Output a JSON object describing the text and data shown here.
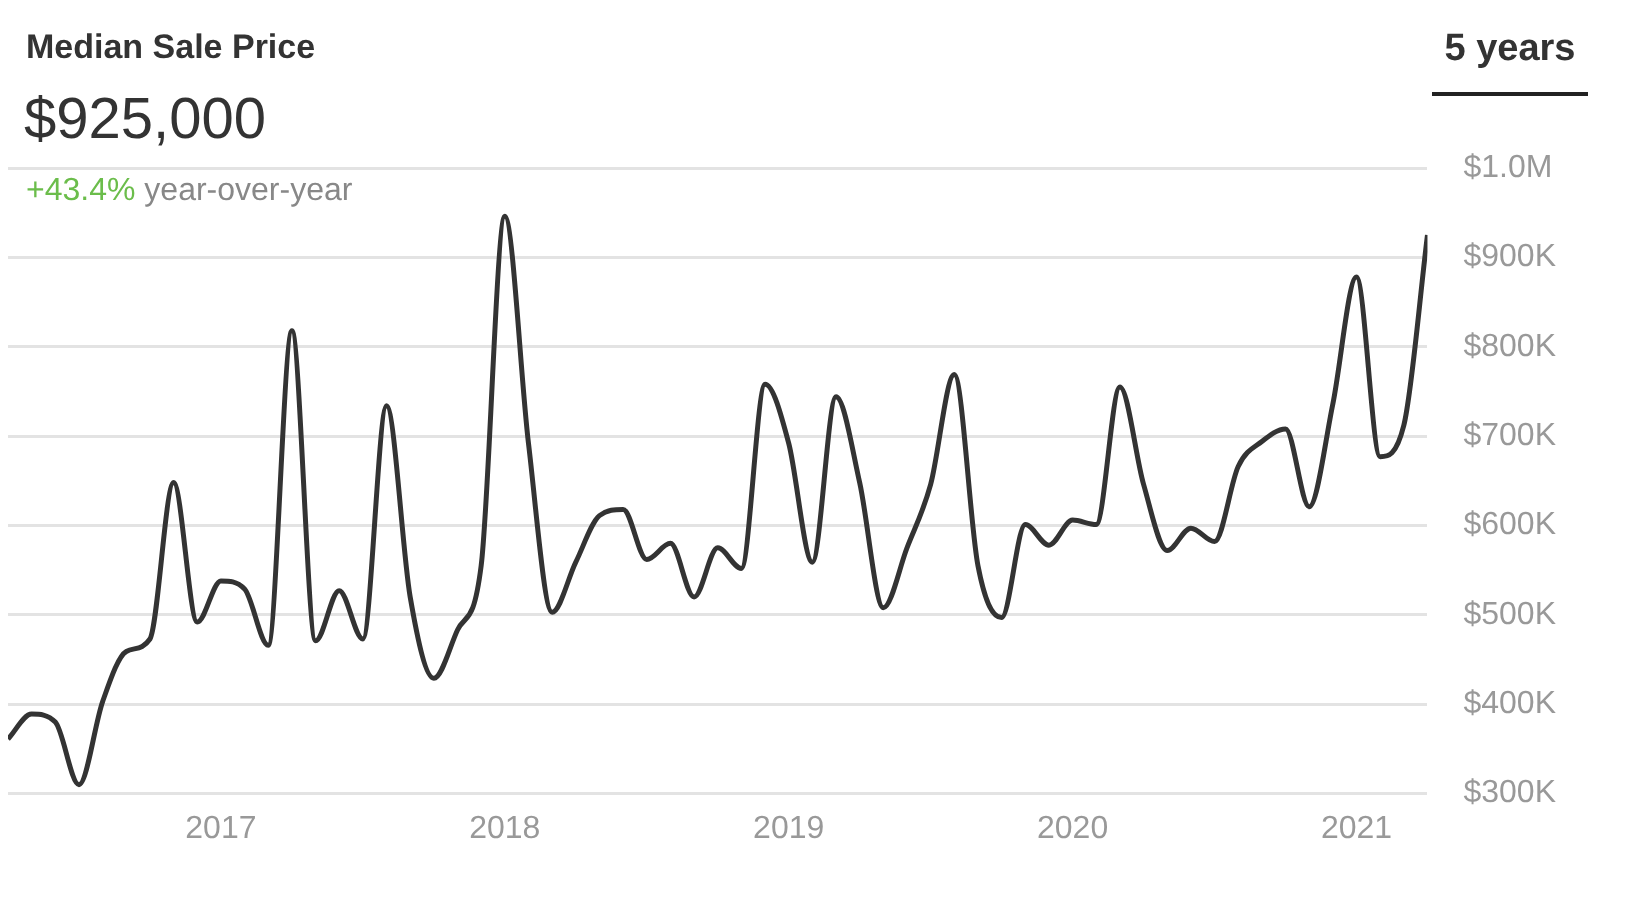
{
  "chart_data": {
    "type": "line",
    "title": "Median Sale Price",
    "subtitle": "$925,000",
    "annotations": [
      "+43.4%",
      "year-over-year",
      "5 years"
    ],
    "x": [
      "2016-04",
      "2016-05",
      "2016-06",
      "2016-07",
      "2016-08",
      "2016-09",
      "2016-10",
      "2016-11",
      "2016-12",
      "2017-01",
      "2017-02",
      "2017-03",
      "2017-04",
      "2017-05",
      "2017-06",
      "2017-07",
      "2017-08",
      "2017-09",
      "2017-10",
      "2017-11",
      "2017-12",
      "2018-01",
      "2018-02",
      "2018-03",
      "2018-04",
      "2018-05",
      "2018-06",
      "2018-07",
      "2018-08",
      "2018-09",
      "2018-10",
      "2018-11",
      "2018-12",
      "2019-01",
      "2019-02",
      "2019-03",
      "2019-04",
      "2019-05",
      "2019-06",
      "2019-07",
      "2019-08",
      "2019-09",
      "2019-10",
      "2019-11",
      "2019-12",
      "2020-01",
      "2020-02",
      "2020-03",
      "2020-04",
      "2020-05",
      "2020-06",
      "2020-07",
      "2020-08",
      "2020-09",
      "2020-10",
      "2020-11",
      "2020-12",
      "2021-01",
      "2021-02",
      "2021-03",
      "2021-04"
    ],
    "series": [
      {
        "color": "#333333",
        "values": [
          361000,
          389000,
          380000,
          310000,
          403000,
          459000,
          473000,
          648000,
          492000,
          538000,
          529000,
          466000,
          818000,
          471000,
          527000,
          473000,
          734000,
          520000,
          429000,
          483000,
          555000,
          946000,
          692000,
          503000,
          559000,
          611000,
          618000,
          562000,
          580000,
          520000,
          575000,
          552000,
          758000,
          692000,
          559000,
          744000,
          648000,
          508000,
          575000,
          646000,
          769000,
          555000,
          497000,
          601000,
          578000,
          606000,
          601000,
          755000,
          646000,
          572000,
          597000,
          582000,
          666000,
          694000,
          708000,
          621000,
          736000,
          878000,
          677000,
          712000,
          925000
        ]
      }
    ],
    "xlim": [
      "2016-04",
      "2021-04"
    ],
    "xticks": [
      "2017",
      "2018",
      "2019",
      "2020",
      "2021"
    ],
    "ylim": [
      300000,
      1000000
    ],
    "yticks": [
      {
        "value": 300000,
        "label": "$300K"
      },
      {
        "value": 400000,
        "label": "$400K"
      },
      {
        "value": 500000,
        "label": "$500K"
      },
      {
        "value": 600000,
        "label": "$600K"
      },
      {
        "value": 700000,
        "label": "$700K"
      },
      {
        "value": 800000,
        "label": "$800K"
      },
      {
        "value": 900000,
        "label": "$900K"
      },
      {
        "value": 1000000,
        "label": "$1.0M"
      }
    ],
    "grid": "y",
    "legend": false,
    "marker": "none",
    "line_style": "solid"
  }
}
